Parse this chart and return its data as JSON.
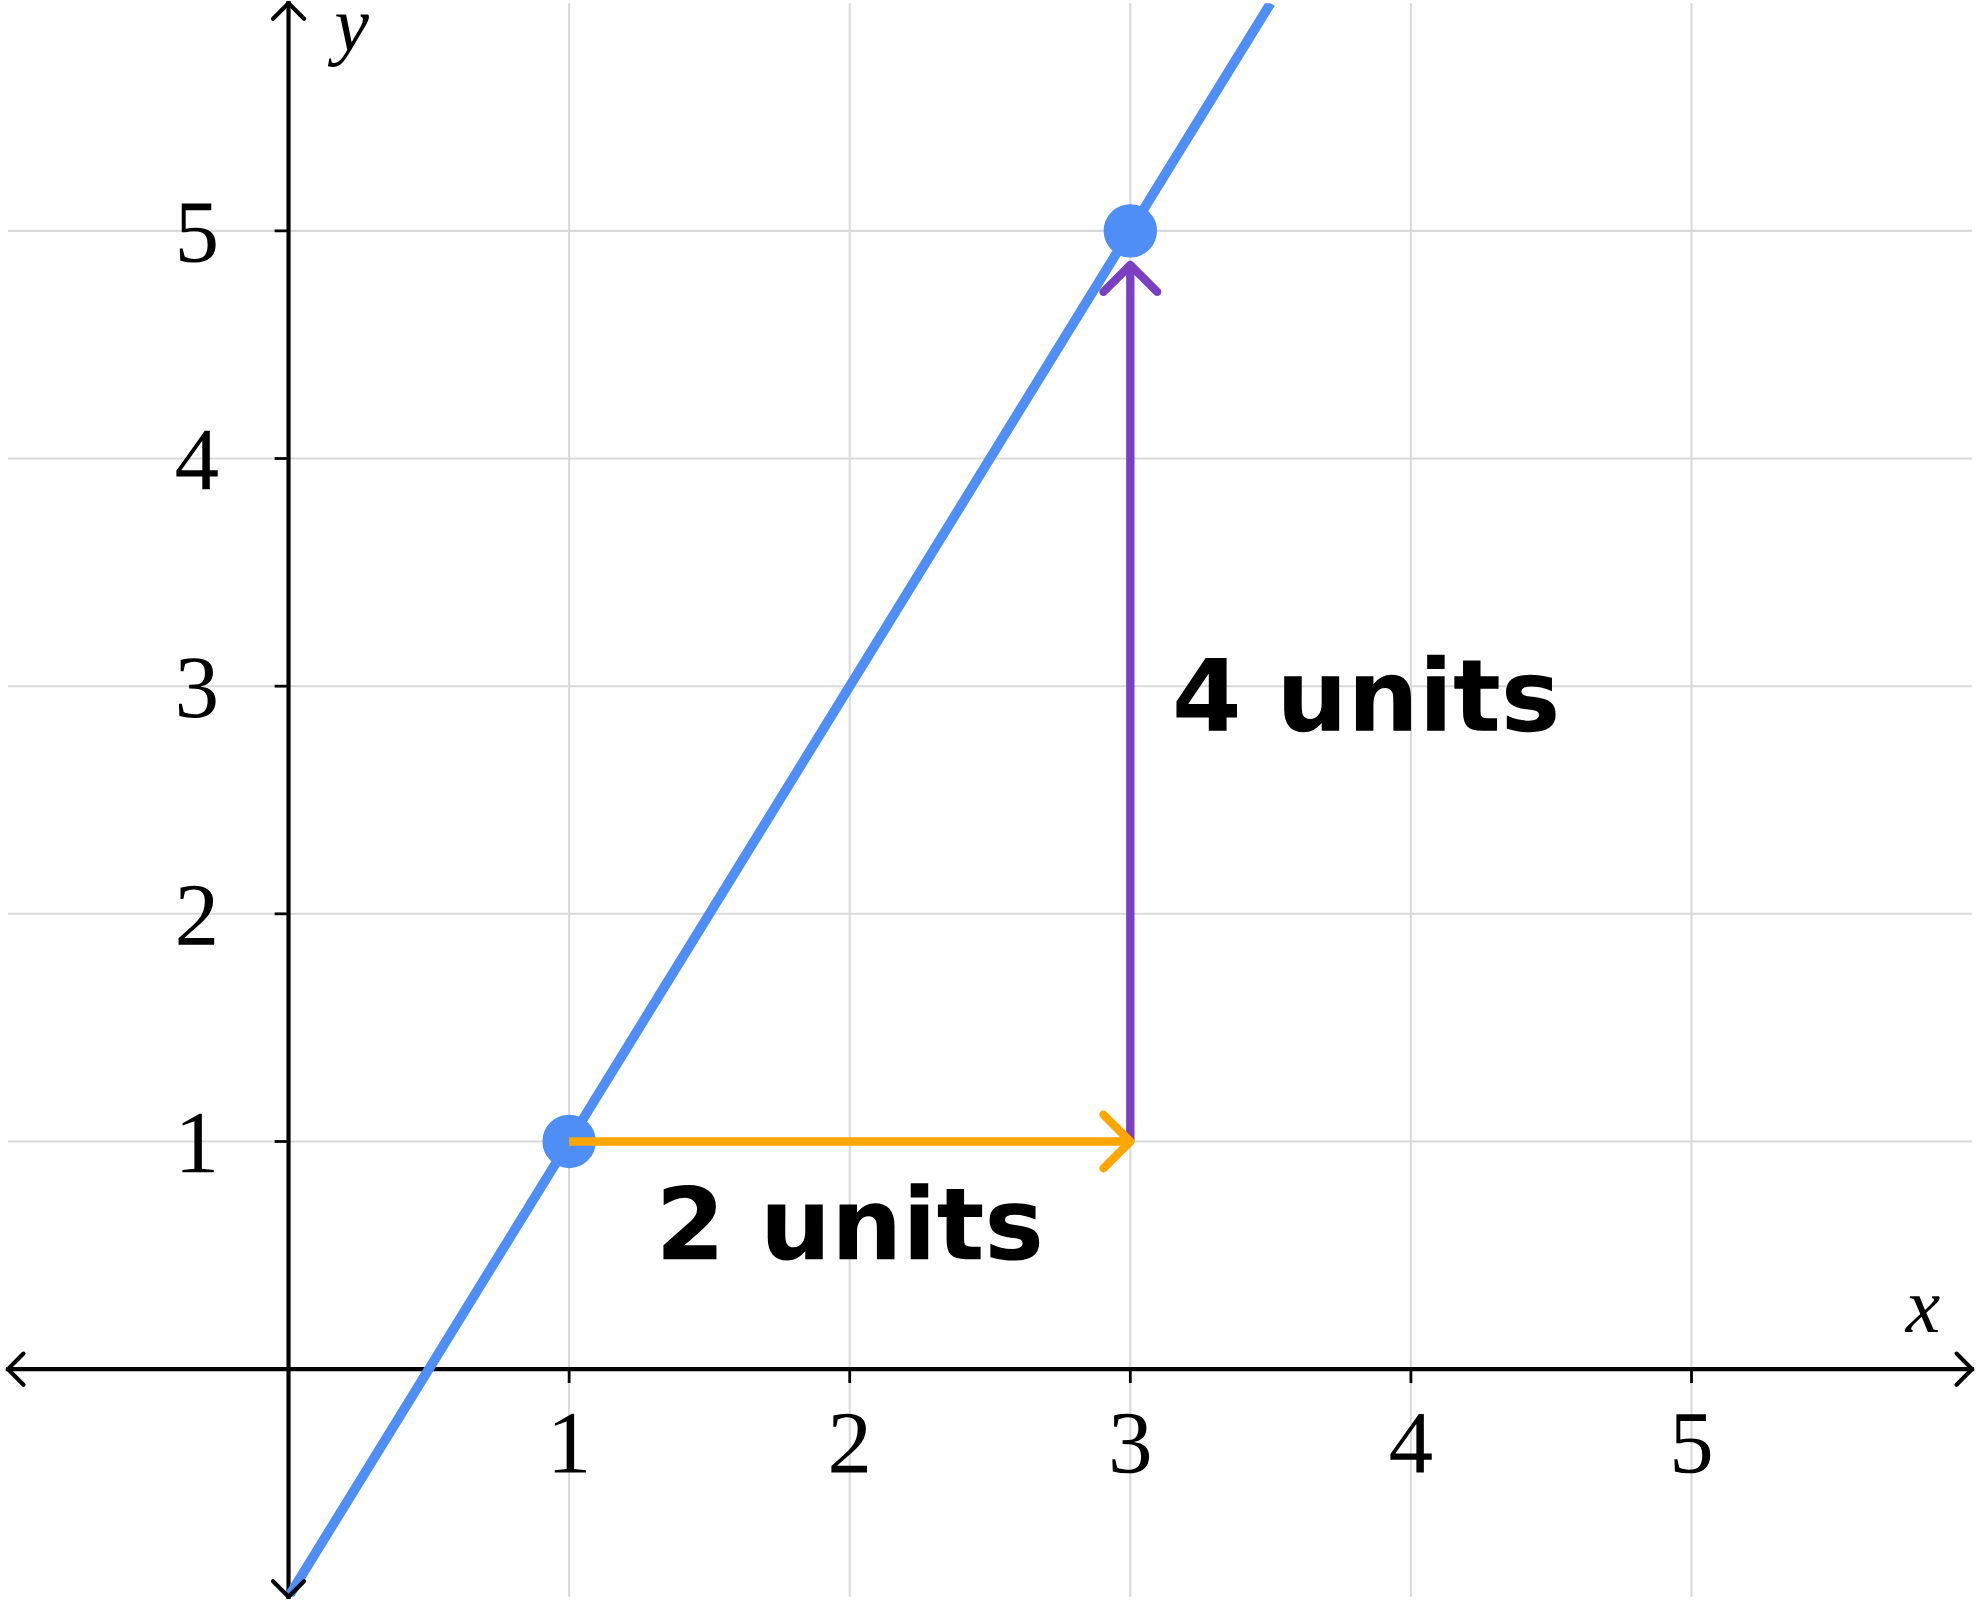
{
  "chart_data": {
    "type": "line",
    "xlabel": "x",
    "ylabel": "y",
    "xlim": [
      -1,
      6
    ],
    "ylim": [
      -1,
      6
    ],
    "xticks": [
      1,
      2,
      3,
      4,
      5
    ],
    "yticks": [
      1,
      2,
      3,
      4,
      5
    ],
    "grid": true,
    "line_style": "solid",
    "series": [
      {
        "color": "#4f8ef7",
        "x": [
          0,
          3.5
        ],
        "values": [
          -1,
          6
        ],
        "marker": "none"
      },
      {
        "type": "scatter",
        "color": "#4f8ef7",
        "x": [
          1,
          3
        ],
        "values": [
          1,
          5
        ],
        "marker": "circle"
      },
      {
        "color": "#ffa600",
        "x": [
          1,
          3
        ],
        "values": [
          1,
          1
        ],
        "marker": "none"
      },
      {
        "color": "#7b3fc4",
        "x": [
          3,
          3
        ],
        "values": [
          1,
          4.85
        ],
        "marker": "none"
      }
    ],
    "annotations": [
      "2 units",
      "4 units"
    ]
  }
}
